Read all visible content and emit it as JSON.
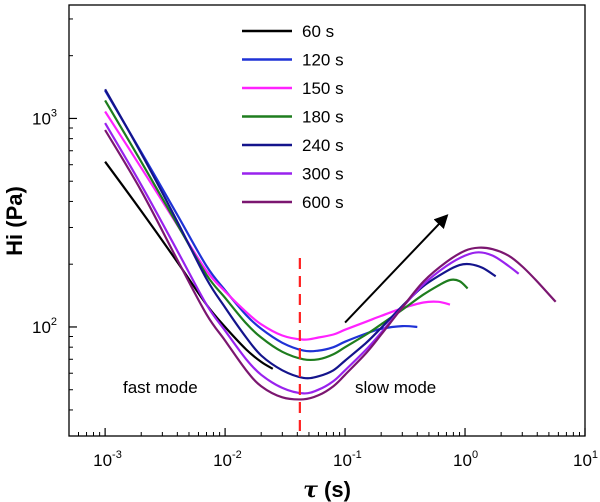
{
  "chart_data": {
    "type": "line",
    "xlabel": "τ (s)",
    "ylabel": "Hi (Pa)",
    "xscale": "log",
    "yscale": "log",
    "xlim": [
      0.0005,
      10
    ],
    "ylim": [
      30,
      3500
    ],
    "x_ticks": [
      {
        "base": "10",
        "exp": "-3",
        "value": 0.001
      },
      {
        "base": "10",
        "exp": "-2",
        "value": 0.01
      },
      {
        "base": "10",
        "exp": "-1",
        "value": 0.1
      },
      {
        "base": "10",
        "exp": "0",
        "value": 1
      },
      {
        "base": "10",
        "exp": "1",
        "value": 10
      }
    ],
    "y_ticks": [
      {
        "base": "10",
        "exp": "2",
        "value": 100
      },
      {
        "base": "10",
        "exp": "3",
        "value": 1000
      }
    ],
    "legend_position": "top-center",
    "grid": false,
    "series": [
      {
        "name": "60 s",
        "color": "#000000",
        "x": [
          0.001,
          0.002,
          0.004,
          0.007,
          0.01,
          0.015,
          0.02,
          0.025
        ],
        "y": [
          620,
          360,
          205,
          128,
          100,
          78,
          68,
          63
        ]
      },
      {
        "name": "120 s",
        "color": "#1f32d6",
        "x": [
          0.001,
          0.002,
          0.004,
          0.007,
          0.01,
          0.015,
          0.02,
          0.03,
          0.045,
          0.06,
          0.08,
          0.1,
          0.15,
          0.2,
          0.3,
          0.4
        ],
        "y": [
          1360,
          690,
          345,
          196,
          150,
          114,
          98,
          84,
          77,
          77,
          80,
          85,
          93,
          98,
          101,
          100
        ]
      },
      {
        "name": "150 s",
        "color": "#ff22ff",
        "x": [
          0.001,
          0.002,
          0.004,
          0.007,
          0.01,
          0.015,
          0.02,
          0.03,
          0.045,
          0.06,
          0.08,
          0.1,
          0.15,
          0.2,
          0.3,
          0.45,
          0.6,
          0.75
        ],
        "y": [
          1080,
          580,
          308,
          186,
          148,
          118,
          103,
          91,
          87,
          89,
          92,
          97,
          106,
          113,
          123,
          131,
          132,
          128
        ]
      },
      {
        "name": "180 s",
        "color": "#1e7d1e",
        "x": [
          0.001,
          0.002,
          0.004,
          0.007,
          0.01,
          0.015,
          0.02,
          0.03,
          0.045,
          0.06,
          0.08,
          0.1,
          0.15,
          0.2,
          0.3,
          0.45,
          0.6,
          0.75,
          0.9,
          1.05
        ],
        "y": [
          1220,
          620,
          310,
          178,
          138,
          104,
          89,
          76,
          70,
          70,
          74,
          80,
          92,
          103,
          121,
          143,
          158,
          168,
          166,
          153
        ]
      },
      {
        "name": "240 s",
        "color": "#14148c",
        "x": [
          0.001,
          0.002,
          0.004,
          0.007,
          0.01,
          0.015,
          0.02,
          0.03,
          0.045,
          0.06,
          0.08,
          0.1,
          0.15,
          0.2,
          0.3,
          0.45,
          0.7,
          0.9,
          1.1,
          1.4,
          1.8
        ],
        "y": [
          1380,
          680,
          320,
          170,
          124,
          89,
          73,
          62,
          57,
          58,
          62,
          69,
          84,
          99,
          126,
          157,
          185,
          198,
          200,
          192,
          175
        ]
      },
      {
        "name": "300 s",
        "color": "#9922ee",
        "x": [
          0.001,
          0.002,
          0.004,
          0.007,
          0.01,
          0.015,
          0.02,
          0.03,
          0.045,
          0.06,
          0.08,
          0.1,
          0.15,
          0.2,
          0.3,
          0.45,
          0.7,
          1.0,
          1.3,
          1.7,
          2.2,
          2.8
        ],
        "y": [
          950,
          480,
          232,
          128,
          96,
          70,
          59,
          51,
          48,
          50,
          55,
          62,
          78,
          94,
          124,
          160,
          196,
          220,
          228,
          220,
          200,
          180
        ]
      },
      {
        "name": "600 s",
        "color": "#7b1670",
        "x": [
          0.001,
          0.002,
          0.004,
          0.007,
          0.01,
          0.015,
          0.02,
          0.03,
          0.045,
          0.06,
          0.08,
          0.1,
          0.15,
          0.2,
          0.3,
          0.45,
          0.7,
          1.0,
          1.3,
          1.7,
          2.3,
          3.0,
          4.0,
          5.7
        ],
        "y": [
          880,
          450,
          210,
          115,
          86,
          62,
          52,
          46,
          45,
          47,
          52,
          59,
          75,
          92,
          124,
          165,
          205,
          232,
          240,
          236,
          220,
          195,
          165,
          132
        ]
      }
    ],
    "annotations": {
      "left_text": "fast mode",
      "right_text": "slow mode",
      "divider_x": 0.042,
      "arrow_from": [
        0.1,
        105
      ],
      "arrow_to": [
        0.7,
        340
      ]
    }
  }
}
